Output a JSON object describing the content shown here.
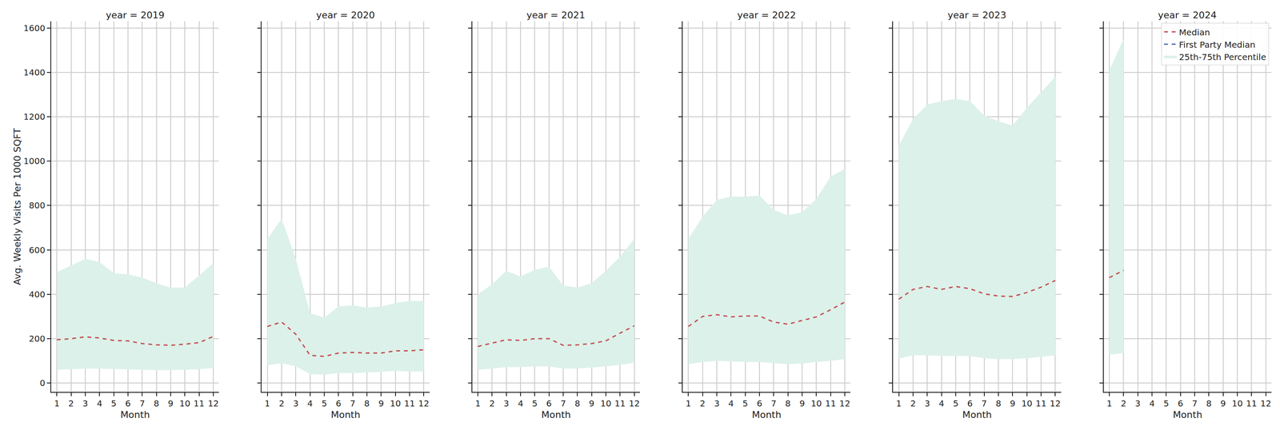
{
  "chart_data": [
    {
      "type": "line",
      "title": "year = 2019",
      "xlabel": "Month",
      "ylabel": "Avg. Weekly Visits Per 1000 SQFT",
      "x": [
        1,
        2,
        3,
        4,
        5,
        6,
        7,
        8,
        9,
        10,
        11,
        12
      ],
      "xlim": [
        0.6,
        12.4
      ],
      "xticks": [
        1,
        2,
        3,
        4,
        5,
        6,
        7,
        8,
        9,
        10,
        11,
        12
      ],
      "ylim": [
        -40,
        1630
      ],
      "yticks": [
        0,
        200,
        400,
        600,
        800,
        1000,
        1200,
        1400,
        1600
      ],
      "grid": true,
      "series": [
        {
          "name": "25th-75th Percentile",
          "type": "band",
          "color": "#dcf1ea",
          "lower": [
            60,
            62,
            65,
            65,
            63,
            62,
            60,
            58,
            58,
            60,
            62,
            68
          ],
          "upper": [
            500,
            530,
            560,
            545,
            495,
            490,
            475,
            450,
            430,
            430,
            485,
            540
          ]
        },
        {
          "name": "Median",
          "color": "#c44e52",
          "line_style": "dash",
          "values": [
            195,
            200,
            208,
            203,
            192,
            190,
            178,
            172,
            170,
            175,
            182,
            210
          ]
        }
      ]
    },
    {
      "type": "line",
      "title": "year = 2020",
      "xlabel": "Month",
      "tick_labels": "x",
      "x": [
        1,
        2,
        3,
        4,
        5,
        6,
        7,
        8,
        9,
        10,
        11,
        12
      ],
      "xlim": [
        0.6,
        12.4
      ],
      "xticks": [
        1,
        2,
        3,
        4,
        5,
        6,
        7,
        8,
        9,
        10,
        11,
        12
      ],
      "ylim": [
        -40,
        1630
      ],
      "yticks": [
        0,
        200,
        400,
        600,
        800,
        1000,
        1200,
        1400,
        1600
      ],
      "grid": true,
      "series": [
        {
          "name": "25th-75th Percentile",
          "type": "band",
          "color": "#dcf1ea",
          "lower": [
            80,
            90,
            75,
            40,
            38,
            45,
            45,
            48,
            50,
            55,
            52,
            52
          ],
          "upper": [
            650,
            740,
            560,
            315,
            295,
            345,
            350,
            340,
            345,
            360,
            370,
            370
          ]
        },
        {
          "name": "Median",
          "color": "#c44e52",
          "line_style": "dash",
          "values": [
            255,
            275,
            220,
            125,
            120,
            135,
            138,
            135,
            135,
            145,
            145,
            150
          ]
        }
      ]
    },
    {
      "type": "line",
      "title": "year = 2021",
      "xlabel": "Month",
      "tick_labels": "x",
      "x": [
        1,
        2,
        3,
        4,
        5,
        6,
        7,
        8,
        9,
        10,
        11,
        12
      ],
      "xlim": [
        0.6,
        12.4
      ],
      "xticks": [
        1,
        2,
        3,
        4,
        5,
        6,
        7,
        8,
        9,
        10,
        11,
        12
      ],
      "ylim": [
        -40,
        1630
      ],
      "yticks": [
        0,
        200,
        400,
        600,
        800,
        1000,
        1200,
        1400,
        1600
      ],
      "grid": true,
      "series": [
        {
          "name": "25th-75th Percentile",
          "type": "band",
          "color": "#dcf1ea",
          "lower": [
            60,
            65,
            72,
            72,
            75,
            75,
            65,
            65,
            70,
            75,
            82,
            92
          ],
          "upper": [
            400,
            445,
            505,
            480,
            510,
            525,
            440,
            430,
            450,
            505,
            570,
            650
          ]
        },
        {
          "name": "Median",
          "color": "#c44e52",
          "line_style": "dash",
          "values": [
            165,
            180,
            195,
            192,
            200,
            200,
            170,
            172,
            178,
            190,
            225,
            258
          ]
        }
      ]
    },
    {
      "type": "line",
      "title": "year = 2022",
      "xlabel": "Month",
      "tick_labels": "x",
      "x": [
        1,
        2,
        3,
        4,
        5,
        6,
        7,
        8,
        9,
        10,
        11,
        12
      ],
      "xlim": [
        0.6,
        12.4
      ],
      "xticks": [
        1,
        2,
        3,
        4,
        5,
        6,
        7,
        8,
        9,
        10,
        11,
        12
      ],
      "ylim": [
        -40,
        1630
      ],
      "yticks": [
        0,
        200,
        400,
        600,
        800,
        1000,
        1200,
        1400,
        1600
      ],
      "grid": true,
      "series": [
        {
          "name": "25th-75th Percentile",
          "type": "band",
          "color": "#dcf1ea",
          "lower": [
            85,
            95,
            100,
            97,
            95,
            95,
            90,
            85,
            88,
            95,
            100,
            108
          ],
          "upper": [
            650,
            750,
            825,
            840,
            840,
            845,
            780,
            755,
            770,
            830,
            930,
            965
          ]
        },
        {
          "name": "Median",
          "color": "#c44e52",
          "line_style": "dash",
          "values": [
            255,
            300,
            308,
            298,
            302,
            302,
            275,
            265,
            282,
            298,
            330,
            365
          ]
        }
      ]
    },
    {
      "type": "line",
      "title": "year = 2023",
      "xlabel": "Month",
      "tick_labels": "x",
      "x": [
        1,
        2,
        3,
        4,
        5,
        6,
        7,
        8,
        9,
        10,
        11,
        12
      ],
      "xlim": [
        0.6,
        12.4
      ],
      "xticks": [
        1,
        2,
        3,
        4,
        5,
        6,
        7,
        8,
        9,
        10,
        11,
        12
      ],
      "ylim": [
        -40,
        1630
      ],
      "yticks": [
        0,
        200,
        400,
        600,
        800,
        1000,
        1200,
        1400,
        1600
      ],
      "grid": true,
      "series": [
        {
          "name": "25th-75th Percentile",
          "type": "band",
          "color": "#dcf1ea",
          "lower": [
            110,
            125,
            125,
            122,
            122,
            122,
            112,
            108,
            108,
            112,
            118,
            125
          ],
          "upper": [
            1070,
            1190,
            1255,
            1270,
            1280,
            1270,
            1205,
            1180,
            1160,
            1240,
            1310,
            1380
          ]
        },
        {
          "name": "Median",
          "color": "#c44e52",
          "line_style": "dash",
          "values": [
            378,
            422,
            435,
            422,
            435,
            425,
            402,
            392,
            390,
            408,
            432,
            462
          ]
        }
      ]
    },
    {
      "type": "line",
      "title": "year = 2024",
      "xlabel": "Month",
      "tick_labels": "x",
      "legend": "upper right",
      "x": [
        1,
        2,
        3,
        4,
        5,
        6,
        7,
        8,
        9,
        10,
        11,
        12
      ],
      "xlim": [
        0.6,
        12.4
      ],
      "xticks": [
        1,
        2,
        3,
        4,
        5,
        6,
        7,
        8,
        9,
        10,
        11,
        12
      ],
      "ylim": [
        -40,
        1630
      ],
      "yticks": [
        0,
        200,
        400,
        600,
        800,
        1000,
        1200,
        1400,
        1600
      ],
      "grid": true,
      "series": [
        {
          "name": "25th-75th Percentile",
          "type": "band",
          "color": "#dcf1ea",
          "lower": [
            128,
            135,
            null,
            null,
            null,
            null,
            null,
            null,
            null,
            null,
            null,
            null
          ],
          "upper": [
            1410,
            1550,
            null,
            null,
            null,
            null,
            null,
            null,
            null,
            null,
            null,
            null
          ]
        },
        {
          "name": "Median",
          "color": "#c44e52",
          "line_style": "dash",
          "values": [
            475,
            508,
            null,
            null,
            null,
            null,
            null,
            null,
            null,
            null,
            null,
            null
          ]
        },
        {
          "name": "First Party Median",
          "color": "#4c72b0",
          "line_style": "dash",
          "values": [
            null,
            null,
            null,
            null,
            null,
            null,
            null,
            null,
            null,
            null,
            null,
            null
          ]
        }
      ]
    }
  ]
}
